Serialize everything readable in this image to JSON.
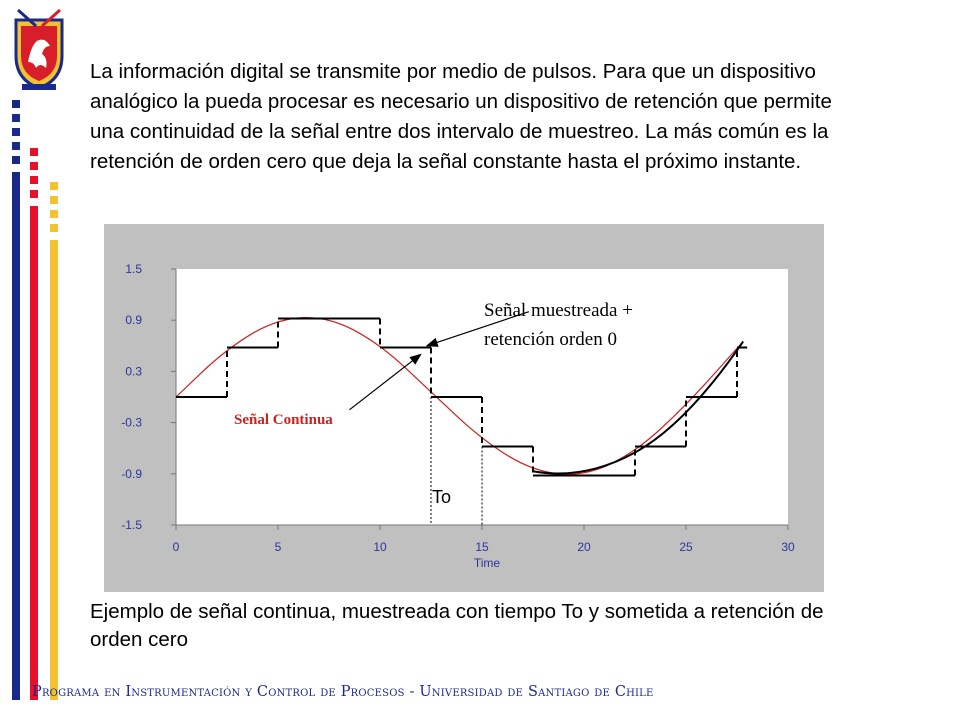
{
  "intro_text": "La información digital se transmite por medio de pulsos. Para que un dispositivo analógico la pueda procesar es necesario un dispositivo de retención que permite una continuidad de la señal entre dos intervalo de muestreo. La más común es  la retención de orden cero que deja la señal constante hasta el próximo instante.",
  "caption_text": "Ejemplo de señal continua, muestreada con tiempo To y sometida a retención de orden cero",
  "footer_text": "Programa en Instrumentación y Control de Procesos - Universidad de Santiago de Chile",
  "colors": {
    "panel_bg": "#c0c0c0",
    "axis_text": "#222222",
    "xlabel_text": "#2a35a0",
    "continuous": "#cc2222",
    "held": "#000000",
    "footer": "#1b2a8c",
    "bar_blue": "#1a2a8c",
    "bar_red": "#e8102a",
    "bar_yellow": "#f2c230"
  },
  "chart_data": {
    "type": "line",
    "xlabel": "Time",
    "ylabel": "",
    "xlim": [
      0,
      30
    ],
    "ylim": [
      -1.5,
      1.5
    ],
    "x_ticks": [
      0,
      5,
      10,
      15,
      20,
      25,
      30
    ],
    "x_tick_labels": [
      "0",
      "5",
      "10",
      "15",
      "20",
      "25",
      "30"
    ],
    "y_ticks": [
      -1.5,
      -0.9,
      -0.3,
      0.3,
      0.9,
      1.5
    ],
    "y_tick_labels": [
      "-1.5",
      "-0.9",
      "-0.3",
      "0.3",
      "0.9",
      "1.5"
    ],
    "grid": false,
    "continuous_signal": {
      "label": "Señal Continua",
      "x": [
        0,
        2.5,
        5,
        7.5,
        10,
        12.5,
        15,
        17.5,
        20,
        22.5,
        25,
        27.8
      ],
      "y": [
        0,
        0.57,
        0.92,
        0.94,
        0.62,
        0.06,
        -0.5,
        -0.87,
        -0.93,
        -0.65,
        -0.1,
        0.65
      ]
    },
    "held_signal": {
      "label": "Señal muestreada + retención orden 0",
      "sample_period": 2.5,
      "x": [
        0,
        2.5,
        5,
        7.5,
        10,
        12.5,
        15,
        17.5,
        20,
        22.5,
        25,
        27.5
      ],
      "y": [
        0,
        0.58,
        0.92,
        0.92,
        0.58,
        0,
        -0.58,
        -0.92,
        -0.92,
        -0.58,
        0,
        0.58
      ],
      "end_x": 28
    },
    "annotations": [
      {
        "text": "Señal muestreada +",
        "from_x": 17.3,
        "from_y": 1.0,
        "to_x": 12.3,
        "to_y": 0.6
      },
      {
        "text": "retención orden 0"
      },
      {
        "text": "Señal Continua",
        "from_x": 8.5,
        "from_y": -0.15,
        "to_x": 12,
        "to_y": 0.5
      },
      {
        "text": "To",
        "from_x": 12.5,
        "to_x": 15,
        "at_y": -1.5
      }
    ]
  }
}
